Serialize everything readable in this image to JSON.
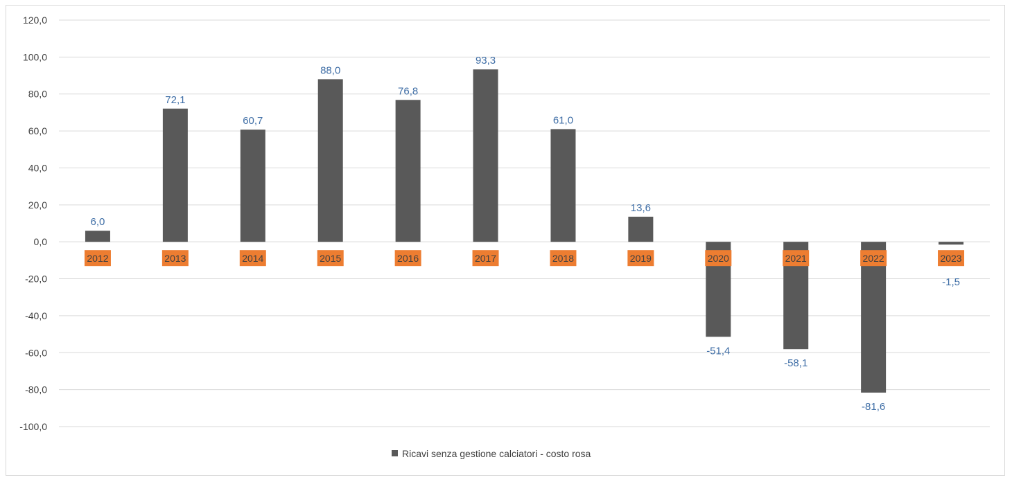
{
  "chart_data": {
    "type": "bar",
    "categories": [
      "2012",
      "2013",
      "2014",
      "2015",
      "2016",
      "2017",
      "2018",
      "2019",
      "2020",
      "2021",
      "2022",
      "2023"
    ],
    "series": [
      {
        "name": "Ricavi senza gestione calciatori - costo rosa",
        "values": [
          6.0,
          72.1,
          60.7,
          88.0,
          76.8,
          93.3,
          61.0,
          13.6,
          -51.4,
          -58.1,
          -81.6,
          -1.5
        ],
        "labels": [
          "6,0",
          "72,1",
          "60,7",
          "88,0",
          "76,8",
          "93,3",
          "61,0",
          "13,6",
          "-51,4",
          "-58,1",
          "-81,6",
          "-1,5"
        ]
      }
    ],
    "ylim": [
      -100,
      120
    ],
    "yticks": [
      120,
      100,
      80,
      60,
      40,
      20,
      0,
      -20,
      -40,
      -60,
      -80,
      -100
    ],
    "ytick_labels": [
      "120,0",
      "100,0",
      "80,0",
      "60,0",
      "40,0",
      "20,0",
      "0,0",
      "-20,0",
      "-40,0",
      "-60,0",
      "-80,0",
      "-100,0"
    ],
    "grid": true,
    "legend_position": "bottom",
    "colors": {
      "bar": "#595959",
      "data_label": "#3f6ea6",
      "category_label_bg": "#ed7d31",
      "grid": "#d9d9d9",
      "axis_text": "#404040"
    }
  }
}
